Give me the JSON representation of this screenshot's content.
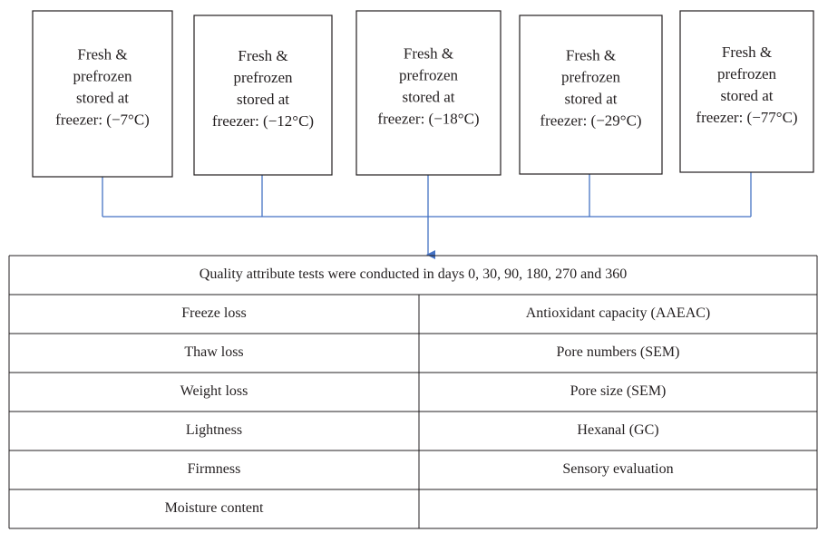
{
  "boxes": [
    {
      "lines": [
        "Fresh &",
        "prefrozen",
        "stored at",
        "freezer: (−7°C)"
      ]
    },
    {
      "lines": [
        "Fresh &",
        "prefrozen",
        "stored at",
        "freezer: (−12°C)"
      ]
    },
    {
      "lines": [
        "Fresh &",
        "prefrozen",
        "stored at",
        "freezer: (−18°C)"
      ]
    },
    {
      "lines": [
        "Fresh &",
        "prefrozen",
        "stored at",
        "freezer: (−29°C)"
      ]
    },
    {
      "lines": [
        "Fresh &",
        "prefrozen",
        "stored at",
        "freezer: (−77°C)"
      ]
    }
  ],
  "table": {
    "header": "Quality attribute tests were conducted in days 0, 30, 90, 180, 270 and 360",
    "rows": [
      [
        "Freeze loss",
        "Antioxidant capacity (AAEAC)"
      ],
      [
        "Thaw loss",
        "Pore numbers (SEM)"
      ],
      [
        "Weight loss",
        "Pore size (SEM)"
      ],
      [
        "Lightness",
        "Hexanal (GC)"
      ],
      [
        "Firmness",
        "Sensory evaluation"
      ],
      [
        "Moisture content"
      ]
    ]
  }
}
